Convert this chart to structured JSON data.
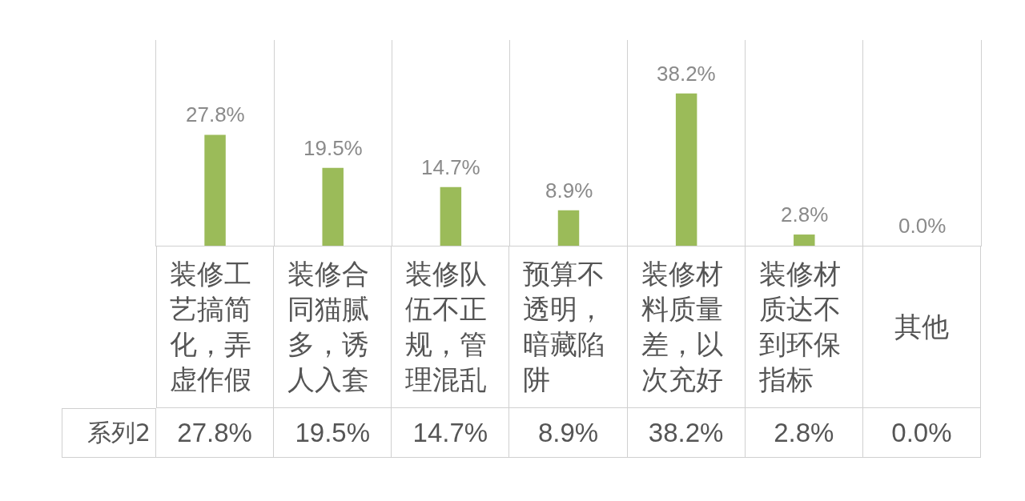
{
  "chart_data": {
    "type": "bar",
    "categories": [
      "装修工艺搞简化，弄虚作假",
      "装修合同猫腻多，诱人入套",
      "装修队伍不正规，管理混乱",
      "预算不透明，暗藏陷阱",
      "装修材料质量差，以次充好",
      "装修材质达不到环保指标",
      "其他"
    ],
    "series": [
      {
        "name": "系列2",
        "color": "#9bbb59",
        "values": [
          27.8,
          19.5,
          14.7,
          8.9,
          38.2,
          2.8,
          0.0
        ],
        "value_labels": [
          "27.8%",
          "19.5%",
          "14.7%",
          "8.9%",
          "38.2%",
          "2.8%",
          "0.0%"
        ]
      }
    ],
    "grid": "x",
    "tick_labels": "x"
  }
}
